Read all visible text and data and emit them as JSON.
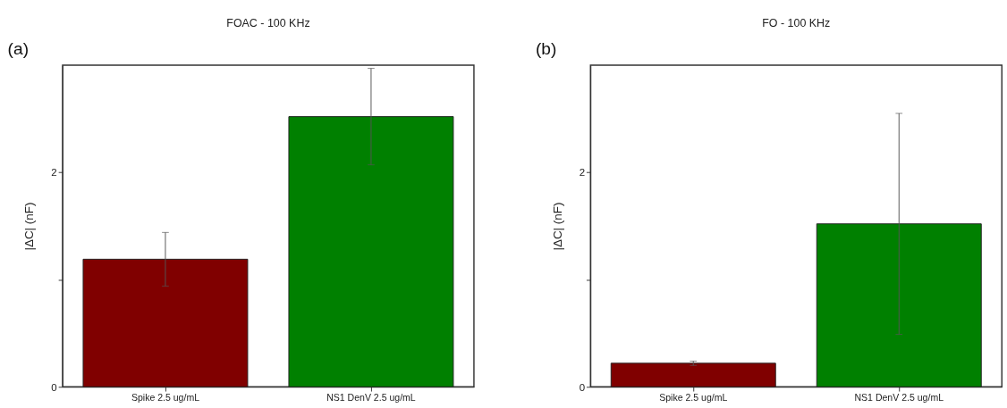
{
  "chart_data": [
    {
      "type": "bar",
      "title": "FOAC - 100 KHz",
      "ylabel": "|ΔC| (nF)",
      "categories": [
        "Spike 2.5 ug/mL",
        "NS1 DenV 2.5 ug/mL"
      ],
      "values": [
        1.19,
        2.52
      ],
      "errors": [
        0.25,
        0.45
      ],
      "colors": [
        "#800000",
        "#008000"
      ],
      "ylim": [
        0,
        3
      ],
      "yticks": [
        0,
        {
          "value": 1,
          "label": null
        },
        2
      ],
      "grid": false,
      "annotations": [
        "(a)"
      ]
    },
    {
      "type": "bar",
      "title": "FO - 100 KHz",
      "ylabel": "|ΔC| (nF)",
      "categories": [
        "Spike 2.5 ug/mL",
        "NS1 DenV 2.5 ug/mL"
      ],
      "values": [
        0.22,
        1.52
      ],
      "errors": [
        0.02,
        1.03
      ],
      "colors": [
        "#800000",
        "#008000"
      ],
      "ylim": [
        0,
        3
      ],
      "yticks": [
        0,
        {
          "value": 1,
          "label": null
        },
        2
      ],
      "grid": false,
      "annotations": [
        "(b)"
      ]
    }
  ]
}
